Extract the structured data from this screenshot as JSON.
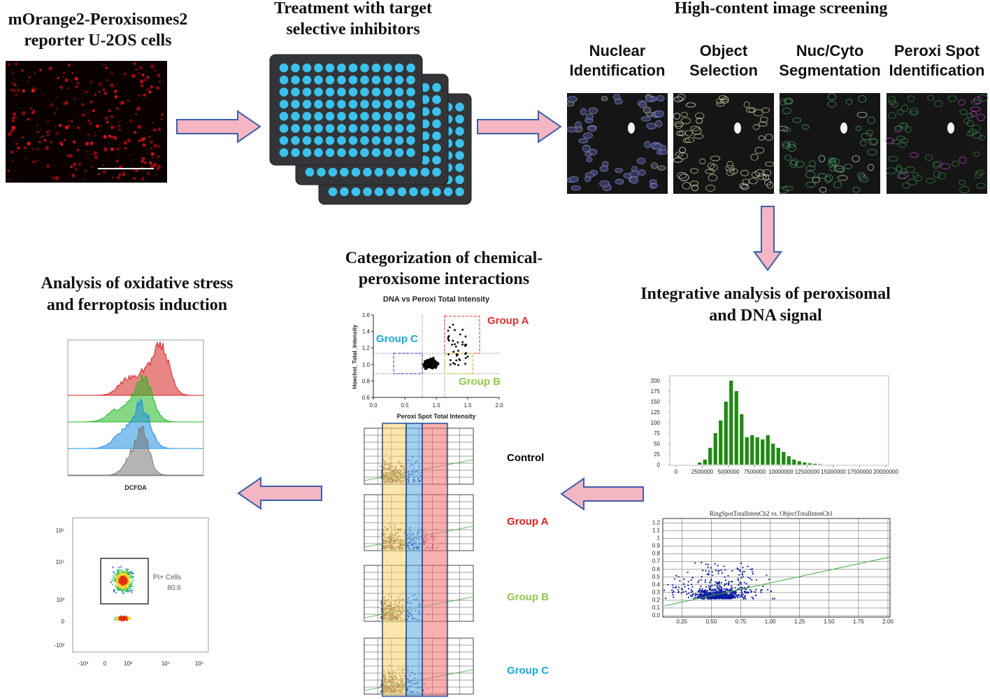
{
  "steps": {
    "reporter": {
      "title": [
        "mOrange2-Peroxisomes2",
        "reporter U-2OS cells"
      ]
    },
    "treatment": {
      "title": [
        "Treatment with target",
        "selective inhibitors"
      ]
    },
    "screening": {
      "title": "High-content image screening",
      "panels": [
        [
          "Nuclear",
          "Identification"
        ],
        [
          "Object",
          "Selection"
        ],
        [
          "Nuc/Cyto",
          "Segmentation"
        ],
        [
          "Peroxi Spot",
          "Identification"
        ]
      ]
    },
    "integrative": {
      "title": [
        "Integrative analysis of peroxisomal",
        "and DNA signal"
      ],
      "histogram": {
        "bins": [
          2000000,
          2500000,
          3000000,
          3500000,
          4000000,
          4500000,
          5000000,
          5500000,
          6000000,
          6500000,
          7000000,
          7500000,
          8000000,
          8500000,
          9000000,
          9500000,
          10000000,
          10500000,
          11000000,
          11500000,
          12000000,
          12500000,
          13000000,
          13500000,
          14000000
        ],
        "counts": [
          5,
          12,
          40,
          75,
          105,
          150,
          200,
          175,
          120,
          65,
          70,
          65,
          60,
          70,
          50,
          40,
          30,
          20,
          12,
          8,
          5,
          3,
          2,
          1
        ],
        "xlim": [
          0,
          20000000
        ],
        "ylim": [
          0,
          210
        ],
        "xticks": [
          0,
          2500000,
          5000000,
          7500000,
          10000000,
          12500000,
          15000000,
          17500000,
          20000000
        ],
        "yticks": [
          0,
          25,
          50,
          75,
          100,
          125,
          150,
          175,
          200
        ]
      },
      "scatter": {
        "title": "RingSpotTotalIntenCh2 vs. ObjectTotalIntenCh1",
        "xlim": [
          0.1,
          2.0
        ],
        "ylim": [
          0,
          1.25
        ],
        "xticks": [
          0.25,
          {
            "value": 0.5,
            "label": "0.50"
          },
          0.75,
          {
            "value": 1,
            "label": "1.00"
          },
          1.25,
          {
            "value": 1.5,
            "label": "1.50"
          },
          1.75,
          {
            "value": 2,
            "label": "2.00"
          }
        ],
        "yticks": [
          {
            "value": 0,
            "label": "0.0"
          },
          0.1,
          0.2,
          0.3,
          0.4,
          0.5,
          0.6,
          0.7,
          0.8,
          0.9,
          1,
          1.1,
          1.2
        ]
      }
    },
    "categorization": {
      "title": [
        "Categorization of chemical-",
        "peroxisome interactions"
      ],
      "plot": {
        "title": "DNA vs Peroxi Total Intensity",
        "ylabel": "Hoechst_Total_Intensity",
        "xlabel": "Peroxi Spot Total Intensity",
        "xlim": [
          0,
          2
        ],
        "ylim": [
          0.6,
          1.6
        ],
        "xticks": [
          {
            "value": 0,
            "label": "0.0"
          },
          0.5,
          {
            "value": 1,
            "label": "1.0"
          },
          1.5,
          {
            "value": 2,
            "label": "2.0"
          }
        ],
        "yticks": [
          0.6,
          0.8,
          {
            "value": 1,
            "label": "1.0"
          },
          1.2,
          1.4,
          1.6
        ],
        "groups": [
          "Group A",
          "Group B",
          "Group C"
        ]
      },
      "rows": [
        "Control",
        "Group A",
        "Group B",
        "Group C"
      ]
    },
    "analysis": {
      "title": [
        "Analysis of oxidative stress",
        "and ferroptosis induction"
      ],
      "histogram_label": "DCFDA",
      "gate": {
        "label": "PI+ Cells",
        "value": 80.6
      },
      "yticks": [
        "10⁵",
        "10⁴",
        "10³",
        "0",
        "-10³"
      ],
      "xticks": [
        "-10³",
        "0",
        "10³",
        "10⁴",
        "10⁵"
      ]
    }
  }
}
